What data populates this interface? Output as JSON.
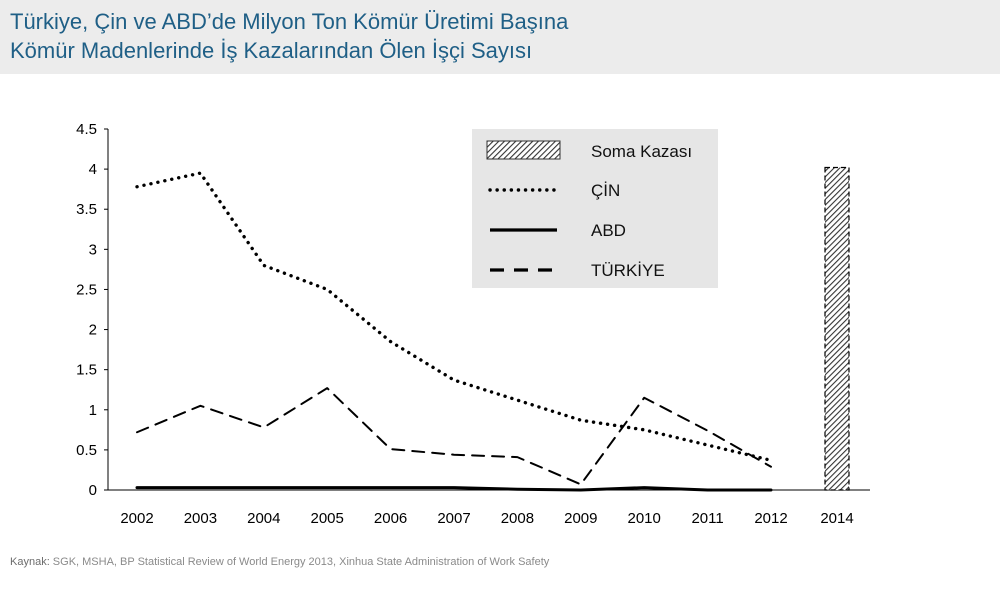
{
  "header": {
    "title_line1": "Türkiye, Çin ve ABD’de Milyon Ton Kömür Üretimi Başına",
    "title_line2": "Kömür Madenlerinde İş Kazalarından Ölen İşçi Sayısı"
  },
  "source": {
    "label": "Kaynak:",
    "text": " SGK, MSHA, BP Statistical Review of World Energy 2013, Xinhua State Administration of Work Safety"
  },
  "chart_data": {
    "type": "line",
    "title": "Türkiye, Çin ve ABD’de Milyon Ton Kömür Üretimi Başına Kömür Madenlerinde İş Kazalarından Ölen İşçi Sayısı",
    "xlabel": "",
    "ylabel": "",
    "categories": [
      "2002",
      "2003",
      "2004",
      "2005",
      "2006",
      "2007",
      "2008",
      "2009",
      "2010",
      "2011",
      "2012"
    ],
    "ylim": [
      0,
      4.5
    ],
    "yticks": [
      "0",
      "0.5",
      "1",
      "1.5",
      "2",
      "2.5",
      "3",
      "3.5",
      "4",
      "4.5"
    ],
    "series": [
      {
        "name": "ÇİN",
        "style": "dotted",
        "color": "#000000",
        "values": [
          3.78,
          3.95,
          2.8,
          2.5,
          1.85,
          1.37,
          1.12,
          0.87,
          0.75,
          0.56,
          0.37
        ]
      },
      {
        "name": "ABD",
        "style": "solid",
        "color": "#000000",
        "values": [
          0.03,
          0.03,
          0.03,
          0.03,
          0.03,
          0.03,
          0.01,
          0.0,
          0.03,
          0.0,
          0.0
        ]
      },
      {
        "name": "TÜRKİYE",
        "style": "dashed",
        "color": "#000000",
        "values": [
          0.72,
          1.05,
          0.78,
          1.27,
          0.51,
          0.44,
          0.41,
          0.07,
          1.15,
          0.74,
          0.29
        ]
      }
    ],
    "bar": {
      "name": "Soma Kazası",
      "category": "2014",
      "value": 4.02,
      "pattern": "hatched"
    },
    "legend": {
      "position": "top-center",
      "entries": [
        "Soma Kazası",
        "ÇİN",
        "ABD",
        "TÜRKİYE"
      ]
    },
    "grid": false
  }
}
